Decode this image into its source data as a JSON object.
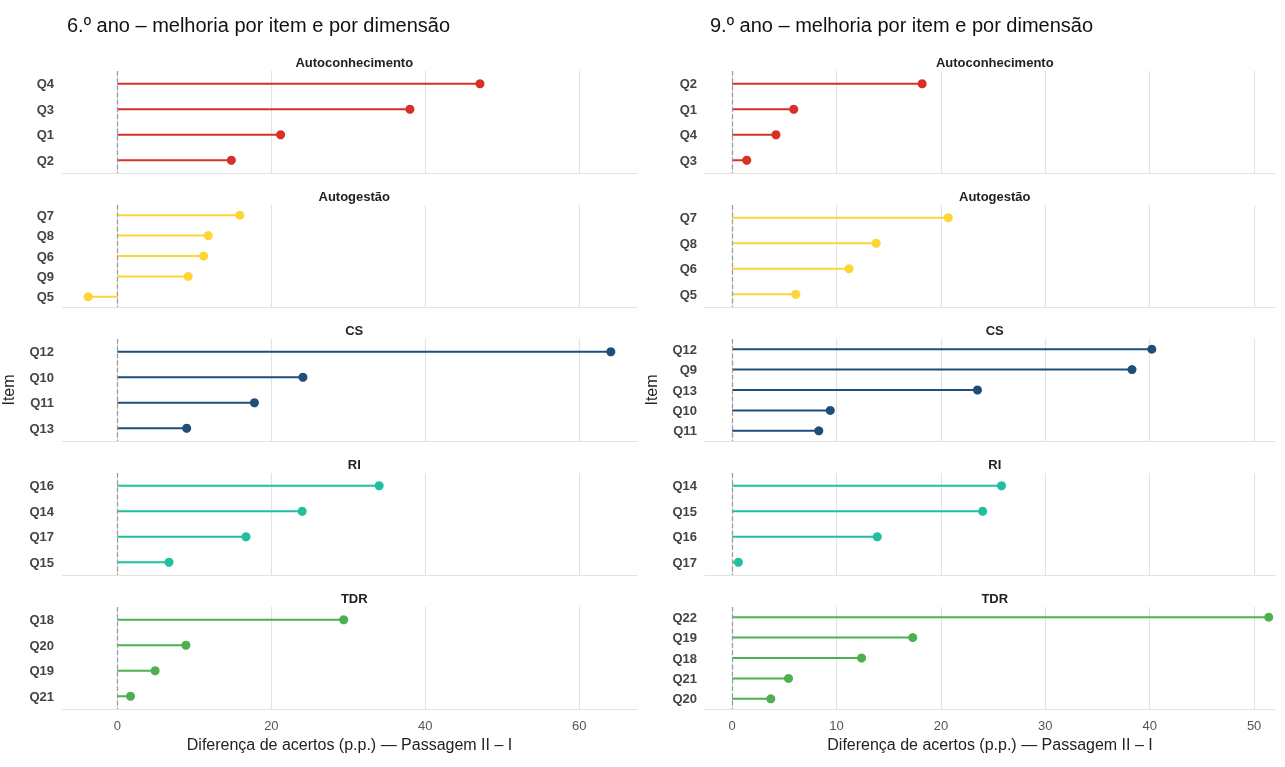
{
  "chart_data": [
    {
      "type": "lollipop",
      "orientation": "horizontal",
      "title": "6.º ano – melhoria por item e por dimensão",
      "subtitle": "Autoconhecimento",
      "categories": [
        "Q4",
        "Q3",
        "Q1",
        "Q2"
      ],
      "values": [
        47.1,
        38.0,
        21.2,
        14.8
      ],
      "color": "#d73027",
      "xlim": [
        -7.2,
        67.5
      ],
      "xticks": [
        0,
        20,
        40,
        60
      ],
      "grid": "x",
      "marker": "circle",
      "tick_labels": "y",
      "ref_lines": [
        {
          "axis": "x",
          "value": 0,
          "color": "#999999",
          "line_style": "dashed"
        }
      ]
    },
    {
      "type": "lollipop",
      "orientation": "horizontal",
      "subtitle": "Autogestão",
      "categories": [
        "Q7",
        "Q8",
        "Q6",
        "Q9",
        "Q5"
      ],
      "values": [
        15.9,
        11.8,
        11.2,
        9.2,
        -3.8
      ],
      "color": "#fdd535",
      "xlim": [
        -7.2,
        67.5
      ],
      "xticks": [
        0,
        20,
        40,
        60
      ],
      "grid": "x",
      "marker": "circle",
      "tick_labels": "y",
      "ref_lines": [
        {
          "axis": "x",
          "value": 0,
          "color": "#999999",
          "line_style": "dashed"
        }
      ]
    },
    {
      "type": "lollipop",
      "orientation": "horizontal",
      "subtitle": "CS",
      "ylabel": "Item",
      "categories": [
        "Q12",
        "Q10",
        "Q11",
        "Q13"
      ],
      "values": [
        64.1,
        24.1,
        17.8,
        9.0
      ],
      "color": "#1f4e79",
      "xlim": [
        -7.2,
        67.5
      ],
      "xticks": [
        0,
        20,
        40,
        60
      ],
      "grid": "x",
      "marker": "circle",
      "tick_labels": "y",
      "ref_lines": [
        {
          "axis": "x",
          "value": 0,
          "color": "#999999",
          "line_style": "dashed"
        }
      ]
    },
    {
      "type": "lollipop",
      "orientation": "horizontal",
      "subtitle": "RI",
      "categories": [
        "Q16",
        "Q14",
        "Q17",
        "Q15"
      ],
      "values": [
        34.0,
        24.0,
        16.7,
        6.7
      ],
      "color": "#20bf9f",
      "xlim": [
        -7.2,
        67.5
      ],
      "xticks": [
        0,
        20,
        40,
        60
      ],
      "grid": "x",
      "marker": "circle",
      "tick_labels": "y",
      "ref_lines": [
        {
          "axis": "x",
          "value": 0,
          "color": "#999999",
          "line_style": "dashed"
        }
      ]
    },
    {
      "type": "lollipop",
      "orientation": "horizontal",
      "subtitle": "TDR",
      "xlabel": "Diferença de acertos (p.p.) — Passagem II – I",
      "categories": [
        "Q18",
        "Q20",
        "Q19",
        "Q21"
      ],
      "values": [
        29.4,
        8.9,
        4.9,
        1.7
      ],
      "color": "#4caf50",
      "xlim": [
        -7.2,
        67.5
      ],
      "xticks": [
        0,
        20,
        40,
        60
      ],
      "grid": "x",
      "marker": "circle",
      "ref_lines": [
        {
          "axis": "x",
          "value": 0,
          "color": "#999999",
          "line_style": "dashed"
        }
      ]
    },
    {
      "type": "lollipop",
      "orientation": "horizontal",
      "title": "9.º ano – melhoria por item e por dimensão",
      "subtitle": "Autoconhecimento",
      "categories": [
        "Q2",
        "Q1",
        "Q4",
        "Q3"
      ],
      "values": [
        18.2,
        5.9,
        4.2,
        1.4
      ],
      "color": "#d73027",
      "xlim": [
        -2.6,
        52
      ],
      "xticks": [
        0,
        10,
        20,
        30,
        40,
        50
      ],
      "grid": "x",
      "marker": "circle",
      "tick_labels": "y",
      "ref_lines": [
        {
          "axis": "x",
          "value": 0,
          "color": "#999999",
          "line_style": "dashed"
        }
      ]
    },
    {
      "type": "lollipop",
      "orientation": "horizontal",
      "subtitle": "Autogestão",
      "categories": [
        "Q7",
        "Q8",
        "Q6",
        "Q5"
      ],
      "values": [
        20.7,
        13.8,
        11.2,
        6.1
      ],
      "color": "#fdd535",
      "xlim": [
        -2.6,
        52
      ],
      "xticks": [
        0,
        10,
        20,
        30,
        40,
        50
      ],
      "grid": "x",
      "marker": "circle",
      "tick_labels": "y",
      "ref_lines": [
        {
          "axis": "x",
          "value": 0,
          "color": "#999999",
          "line_style": "dashed"
        }
      ]
    },
    {
      "type": "lollipop",
      "orientation": "horizontal",
      "subtitle": "CS",
      "ylabel": "Item",
      "categories": [
        "Q12",
        "Q9",
        "Q13",
        "Q10",
        "Q11"
      ],
      "values": [
        40.2,
        38.3,
        23.5,
        9.4,
        8.3
      ],
      "color": "#1f4e79",
      "xlim": [
        -2.6,
        52
      ],
      "xticks": [
        0,
        10,
        20,
        30,
        40,
        50
      ],
      "grid": "x",
      "marker": "circle",
      "tick_labels": "y",
      "ref_lines": [
        {
          "axis": "x",
          "value": 0,
          "color": "#999999",
          "line_style": "dashed"
        }
      ]
    },
    {
      "type": "lollipop",
      "orientation": "horizontal",
      "subtitle": "RI",
      "categories": [
        "Q14",
        "Q15",
        "Q16",
        "Q17"
      ],
      "values": [
        25.8,
        24.0,
        13.9,
        0.6
      ],
      "color": "#20bf9f",
      "xlim": [
        -2.6,
        52
      ],
      "xticks": [
        0,
        10,
        20,
        30,
        40,
        50
      ],
      "grid": "x",
      "marker": "circle",
      "tick_labels": "y",
      "ref_lines": [
        {
          "axis": "x",
          "value": 0,
          "color": "#999999",
          "line_style": "dashed"
        }
      ]
    },
    {
      "type": "lollipop",
      "orientation": "horizontal",
      "subtitle": "TDR",
      "xlabel": "Diferença de acertos (p.p.) — Passagem II – I",
      "categories": [
        "Q22",
        "Q19",
        "Q18",
        "Q21",
        "Q20"
      ],
      "values": [
        51.4,
        17.3,
        12.4,
        5.4,
        3.7
      ],
      "color": "#4caf50",
      "xlim": [
        -2.6,
        52
      ],
      "xticks": [
        0,
        10,
        20,
        30,
        40,
        50
      ],
      "grid": "x",
      "marker": "circle",
      "ref_lines": [
        {
          "axis": "x",
          "value": 0,
          "color": "#999999",
          "line_style": "dashed"
        }
      ]
    }
  ]
}
